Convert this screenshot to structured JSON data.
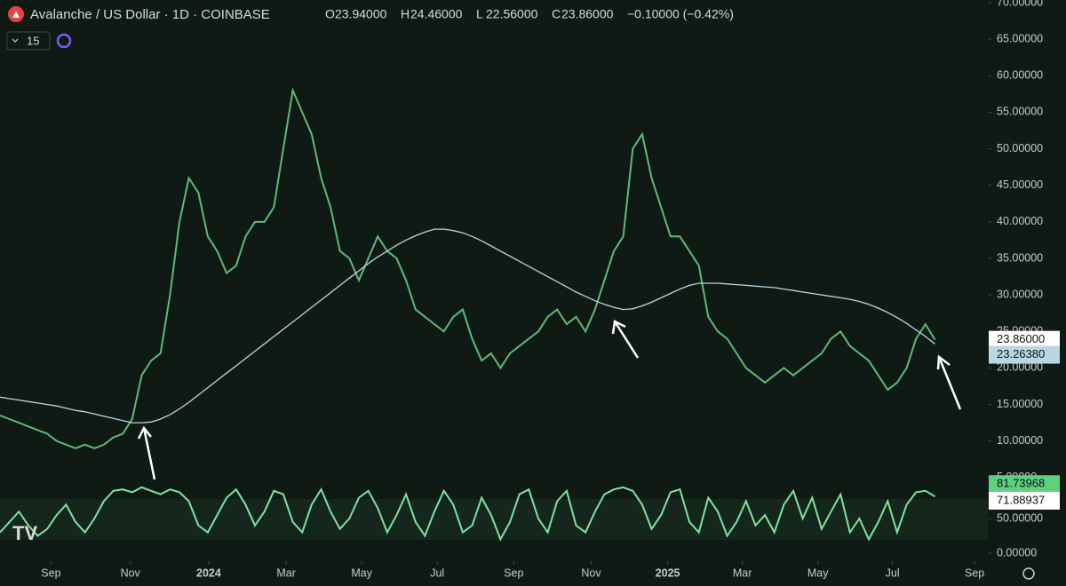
{
  "chart_data": {
    "type": "line",
    "title": "Avalanche / US Dollar · 1D · COINBASE",
    "ohlc": [
      {
        "key": "O",
        "text": "23.94000"
      },
      {
        "key": "H",
        "text": "24.46000"
      },
      {
        "key": "L",
        "text": "22.56000"
      },
      {
        "key": "C",
        "text": "23.86000"
      }
    ],
    "change": "−0.10000 (−0.42%)",
    "interval_input": "15",
    "xlim": [
      0,
      104.6
    ],
    "xticks": [
      {
        "value": 5.4,
        "label": "Sep"
      },
      {
        "value": 13.8,
        "label": "Nov"
      },
      {
        "value": 22.1,
        "label": "2024"
      },
      {
        "value": 30.3,
        "label": "Mar"
      },
      {
        "value": 38.3,
        "label": "May"
      },
      {
        "value": 46.3,
        "label": "Jul"
      },
      {
        "value": 54.4,
        "label": "Sep"
      },
      {
        "value": 62.6,
        "label": "Nov"
      },
      {
        "value": 70.7,
        "label": "2025"
      },
      {
        "value": 78.6,
        "label": "Mar"
      },
      {
        "value": 86.6,
        "label": "May"
      },
      {
        "value": 94.5,
        "label": "Jul"
      },
      {
        "value": 103.2,
        "label": "Sep"
      }
    ],
    "ylim": [
      0,
      70
    ],
    "yticks": [
      {
        "value": 5,
        "label": "5.00000"
      },
      {
        "value": 10,
        "label": "10.00000"
      },
      {
        "value": 15,
        "label": "15.00000"
      },
      {
        "value": 20,
        "label": "20.00000"
      },
      {
        "value": 25,
        "label": "25.00000"
      },
      {
        "value": 30,
        "label": "30.00000"
      },
      {
        "value": 35,
        "label": "35.00000"
      },
      {
        "value": 40,
        "label": "40.00000"
      },
      {
        "value": 45,
        "label": "45.00000"
      },
      {
        "value": 50,
        "label": "50.00000"
      },
      {
        "value": 55,
        "label": "55.00000"
      },
      {
        "value": 60,
        "label": "60.00000"
      },
      {
        "value": 65,
        "label": "65.00000"
      },
      {
        "value": 70,
        "label": "70.00000"
      }
    ],
    "y2lim": [
      0,
      100
    ],
    "y2ticks": [
      {
        "value": 0,
        "label": "0.00000"
      },
      {
        "value": 50,
        "label": "50.00000"
      }
    ],
    "series": [
      {
        "color": "#5dbb78",
        "values": [
          13.5,
          13,
          12.5,
          12,
          11.5,
          11,
          10,
          9.5,
          9,
          9.5,
          9,
          9.5,
          10.5,
          11,
          13,
          19,
          21,
          22,
          30,
          40,
          46,
          44,
          38,
          36,
          33,
          34,
          38,
          40,
          40,
          42,
          50,
          58,
          55,
          52,
          46,
          42,
          36,
          35,
          32,
          35,
          38,
          36,
          35,
          32,
          28,
          27,
          26,
          25,
          27,
          28,
          24,
          21,
          22,
          20,
          22,
          23,
          24,
          25,
          27,
          28,
          26,
          27,
          25,
          28,
          32,
          36,
          38,
          50,
          52,
          46,
          42,
          38,
          38,
          36,
          34,
          27,
          25,
          24,
          22,
          20,
          19,
          18,
          19,
          20,
          19,
          20,
          21,
          22,
          24,
          25,
          23,
          22,
          21,
          19,
          17,
          18,
          20,
          24,
          26,
          23.86
        ]
      },
      {
        "color": "#b8d7e4",
        "values": [
          16,
          15.8,
          15.6,
          15.4,
          15.2,
          15,
          14.8,
          14.5,
          14.2,
          14,
          13.7,
          13.4,
          13.1,
          12.8,
          12.5,
          12.5,
          12.6,
          13,
          13.6,
          14.4,
          15.3,
          16.3,
          17.3,
          18.3,
          19.3,
          20.3,
          21.3,
          22.3,
          23.3,
          24.3,
          25.3,
          26.3,
          27.3,
          28.3,
          29.3,
          30.3,
          31.3,
          32.3,
          33.3,
          34.3,
          35.2,
          36,
          36.8,
          37.5,
          38.1,
          38.6,
          39,
          39,
          38.8,
          38.5,
          38,
          37.4,
          36.7,
          36,
          35.3,
          34.6,
          33.9,
          33.2,
          32.5,
          31.8,
          31.1,
          30.4,
          29.8,
          29.2,
          28.7,
          28.3,
          28,
          28.1,
          28.5,
          29,
          29.6,
          30.2,
          30.8,
          31.3,
          31.6,
          31.6,
          31.6,
          31.5,
          31.4,
          31.3,
          31.2,
          31.1,
          31,
          30.8,
          30.6,
          30.4,
          30.2,
          30,
          29.8,
          29.6,
          29.4,
          29.1,
          28.7,
          28.2,
          27.6,
          26.9,
          26.1,
          25.2,
          24.3,
          23.3
        ]
      },
      {
        "color": "#7fe3a0",
        "axis": "y2",
        "values": [
          30,
          45,
          60,
          40,
          25,
          35,
          55,
          70,
          45,
          30,
          50,
          75,
          90,
          92,
          88,
          95,
          90,
          85,
          92,
          88,
          75,
          40,
          30,
          55,
          80,
          92,
          70,
          40,
          60,
          90,
          85,
          45,
          30,
          70,
          92,
          60,
          35,
          50,
          80,
          90,
          65,
          30,
          55,
          85,
          45,
          25,
          60,
          90,
          70,
          30,
          40,
          80,
          55,
          20,
          45,
          85,
          92,
          50,
          30,
          75,
          90,
          40,
          30,
          60,
          85,
          92,
          95,
          90,
          70,
          35,
          55,
          88,
          92,
          45,
          30,
          80,
          60,
          25,
          45,
          75,
          40,
          55,
          30,
          70,
          90,
          50,
          80,
          35,
          60,
          85,
          30,
          50,
          20,
          45,
          75,
          30,
          70,
          88,
          90,
          81.73968
        ]
      }
    ],
    "last_price": {
      "value": 23.86,
      "label": "23.86000"
    },
    "ma_last": {
      "value": 23.2638,
      "label": "23.26380"
    },
    "osc_labels": [
      {
        "value": 81.73968,
        "label": "81.73968"
      },
      {
        "value": 71.88937,
        "label": "71.88937"
      }
    ]
  }
}
